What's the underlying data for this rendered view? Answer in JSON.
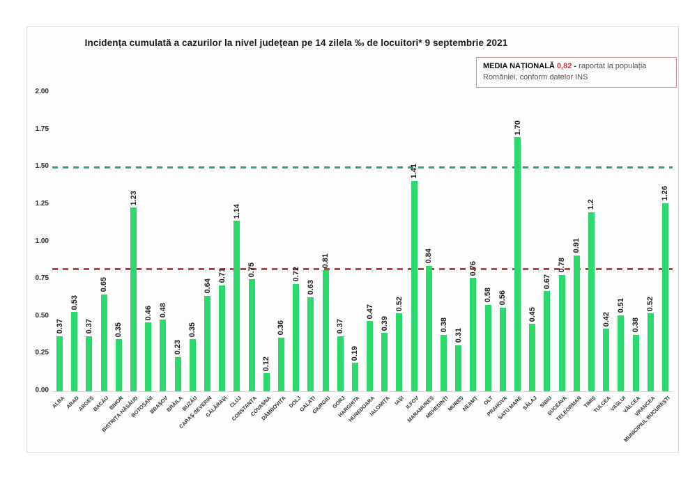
{
  "title": "Incidența cumulată a cazurilor la nivel județean pe 14 zilela ‰ de locuitori* 9 septembrie 2021",
  "legend_box": {
    "label": "MEDIA NAȚIONALĂ",
    "value": "0,82",
    "dash": "-",
    "suffix": "raportat la populația României,",
    "line2": "conform datelor INS",
    "value_color": "#e03131",
    "border_color": "#cf9292"
  },
  "colors": {
    "bar": "#2cd96d",
    "average_line": "#cc3b3b",
    "threshold_line": "#36a377"
  },
  "chart_data": {
    "type": "bar",
    "title": "Incidența cumulată a cazurilor la nivel județean pe 14 zilela ‰ de locuitori* 9 septembrie 2021",
    "xlabel": "",
    "ylabel": "",
    "ylim": [
      0,
      2.0
    ],
    "yticks": [
      "2.00",
      "1.75",
      "1.50",
      "1.25",
      "1.00",
      "0.75",
      "0.50",
      "0.25",
      "0.00"
    ],
    "grid": false,
    "legend_position": "top-right",
    "categories": [
      "ALBA",
      "ARAD",
      "ARGEȘ",
      "BACĂU",
      "BIHOR",
      "BISTRIȚA-NĂSĂUD",
      "BOTOȘANI",
      "BRAȘOV",
      "BRĂILA",
      "BUZĂU",
      "CARAȘ-SEVERIN",
      "CĂLĂRAȘI",
      "CLUJ",
      "CONSTANȚA",
      "COVASNA",
      "DÂMBOVIȚA",
      "DOLJ",
      "GALAȚI",
      "GIURGIU",
      "GORJ",
      "HARGHITA",
      "HUNEDOARA",
      "IALOMIȚA",
      "IAȘI",
      "ILFOV",
      "MARAMUREȘ",
      "MEHEDINȚI",
      "MUREȘ",
      "NEAMȚ",
      "OLT",
      "PRAHOVA",
      "SATU MARE",
      "SĂLAJ",
      "SIBIU",
      "SUCEAVA",
      "TELEORMAN",
      "TIMIȘ",
      "TULCEA",
      "VASLUI",
      "VÂLCEA",
      "VRANCEA",
      "MUNICIPIUL BUCUREȘTI"
    ],
    "values": [
      0.37,
      0.53,
      0.37,
      0.65,
      0.35,
      1.23,
      0.46,
      0.48,
      0.23,
      0.35,
      0.64,
      0.71,
      1.14,
      0.75,
      0.12,
      0.36,
      0.72,
      0.63,
      0.81,
      0.37,
      0.19,
      0.47,
      0.39,
      0.52,
      1.41,
      0.84,
      0.38,
      0.31,
      0.76,
      0.58,
      0.56,
      1.7,
      0.45,
      0.67,
      0.78,
      0.91,
      1.2,
      0.42,
      0.51,
      0.38,
      0.52,
      1.26
    ],
    "value_labels": [
      "0.37",
      "0.53",
      "0.37",
      "0.65",
      "0.35",
      "1.23",
      "0.46",
      "0.48",
      "0.23",
      "0.35",
      "0.64",
      "0.71",
      "1.14",
      "0.75",
      "0.12",
      "0.36",
      "0.72",
      "0.63",
      "0.81",
      "0.37",
      "0.19",
      "0.47",
      "0.39",
      "0.52",
      "1.41",
      "0.84",
      "0.38",
      "0.31",
      "0.76",
      "0.58",
      "0.56",
      "1.70",
      "0.45",
      "0.67",
      "0.78",
      "0.91",
      "1.2",
      "0.42",
      "0.51",
      "0.38",
      "0.52",
      "1.26"
    ],
    "reference_lines": [
      {
        "name": "national-average",
        "value": 0.82,
        "color": "#cc3b3b",
        "style": "dashed"
      },
      {
        "name": "upper-threshold",
        "value": 1.5,
        "color": "#36a377",
        "style": "dashed"
      }
    ]
  }
}
